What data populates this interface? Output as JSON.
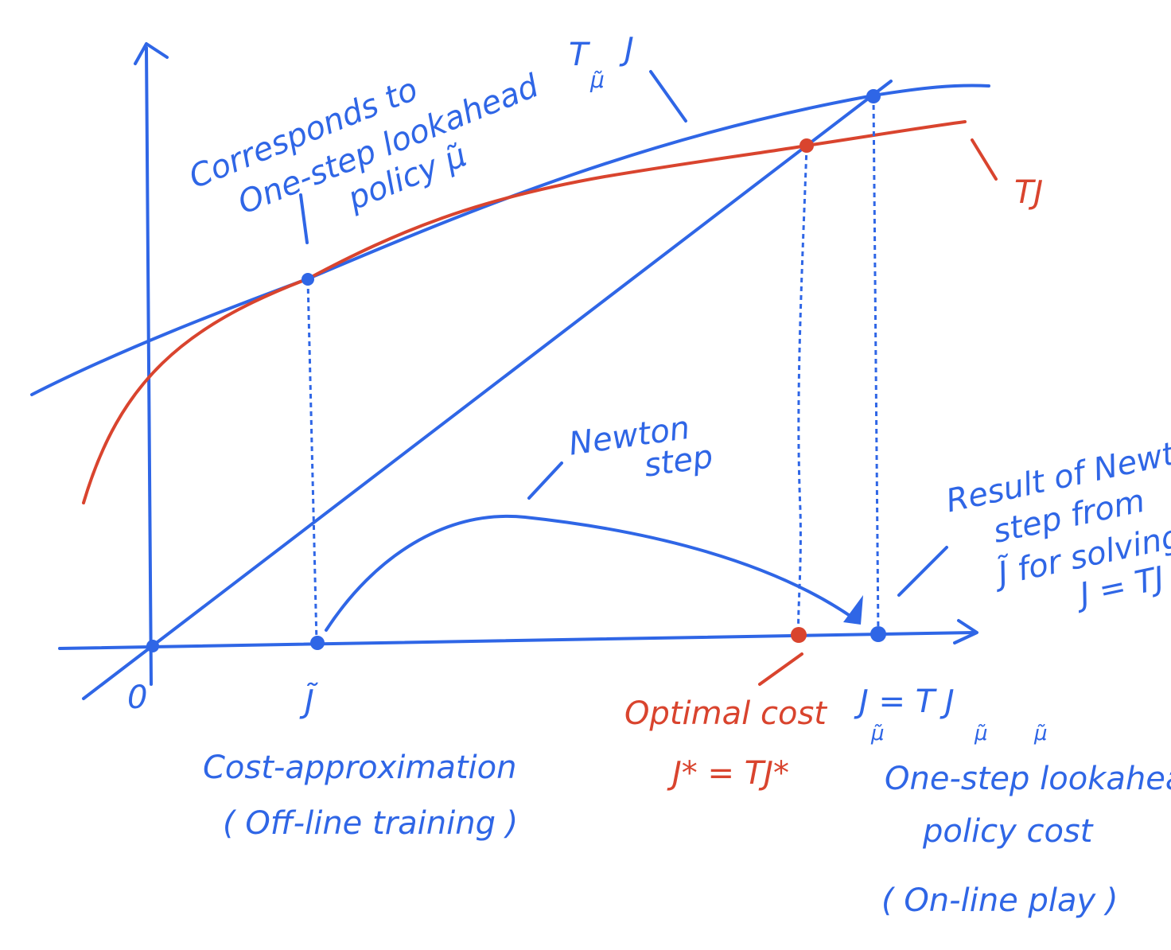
{
  "colors": {
    "blue": "#2f66e6",
    "red": "#d9442e"
  },
  "axis": {
    "origin_label": "0",
    "jtilde_label": "J̃"
  },
  "curves": {
    "t_mu_j_label": "T",
    "t_mu_j_label_sub": "μ̃",
    "t_mu_j_label_end": "J",
    "tj_label": "TJ"
  },
  "annotations": {
    "corresponds_line1": "Corresponds to",
    "corresponds_line2": "One-step lookahead",
    "corresponds_line3": "policy μ̃",
    "newton_line1": "Newton",
    "newton_line2": "step",
    "result_line1": "Result of Newton",
    "result_line2": "step from",
    "result_line3": "J̃ for solving",
    "result_line4": "J = TJ",
    "cost_approx_line1": "Cost-approximation",
    "cost_approx_line2": "( Off-line training )",
    "optimal_line1": "Optimal cost",
    "optimal_line2": "J* = TJ*",
    "jmu_line": "J  = T  J",
    "jmu_sub": "μ̃",
    "lookahead_line1": "One-step lookahead",
    "lookahead_line2": "policy cost",
    "lookahead_line3": "( On-line play )"
  }
}
